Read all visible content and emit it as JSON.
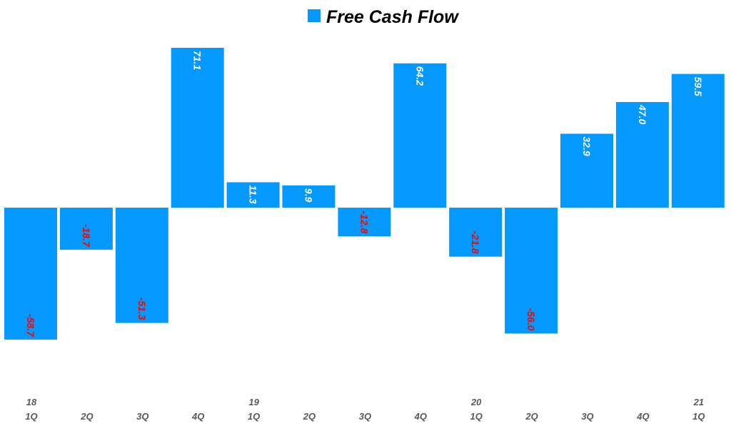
{
  "legend": {
    "label": "Free Cash Flow"
  },
  "colors": {
    "bar": "#0399FF",
    "positive_label": "#FFFFFF",
    "negative_label": "#FF0000",
    "tick": "#595959"
  },
  "chart_data": {
    "type": "bar",
    "categories": [
      "18 1Q",
      "2Q",
      "3Q",
      "4Q",
      "19 1Q",
      "2Q",
      "3Q",
      "4Q",
      "20 1Q",
      "2Q",
      "3Q",
      "4Q",
      "21 1Q"
    ],
    "tick_labels": [
      {
        "year": "18",
        "quarter": "1Q"
      },
      {
        "year": "",
        "quarter": "2Q"
      },
      {
        "year": "",
        "quarter": "3Q"
      },
      {
        "year": "",
        "quarter": "4Q"
      },
      {
        "year": "19",
        "quarter": "1Q"
      },
      {
        "year": "",
        "quarter": "2Q"
      },
      {
        "year": "",
        "quarter": "3Q"
      },
      {
        "year": "",
        "quarter": "4Q"
      },
      {
        "year": "20",
        "quarter": "1Q"
      },
      {
        "year": "",
        "quarter": "2Q"
      },
      {
        "year": "",
        "quarter": "3Q"
      },
      {
        "year": "",
        "quarter": "4Q"
      },
      {
        "year": "21",
        "quarter": "1Q"
      }
    ],
    "series": [
      {
        "name": "Free Cash Flow",
        "values": [
          -58.7,
          -18.7,
          -51.3,
          71.1,
          11.3,
          9.9,
          -12.8,
          64.2,
          -21.8,
          -56.0,
          32.9,
          47.0,
          59.5
        ],
        "labels": [
          "-58.7",
          "-18.7",
          "-51.3",
          "71.1",
          "11.3",
          "9.9",
          "-12.8",
          "64.2",
          "-21.8",
          "-56.0",
          "32.9",
          "47.0",
          "59.5"
        ]
      }
    ],
    "title": "",
    "xlabel": "",
    "ylabel": "",
    "ylim": [
      -80,
      80
    ],
    "grid": false,
    "legend_position": "top-center",
    "data_label_rotation": "vertical"
  }
}
